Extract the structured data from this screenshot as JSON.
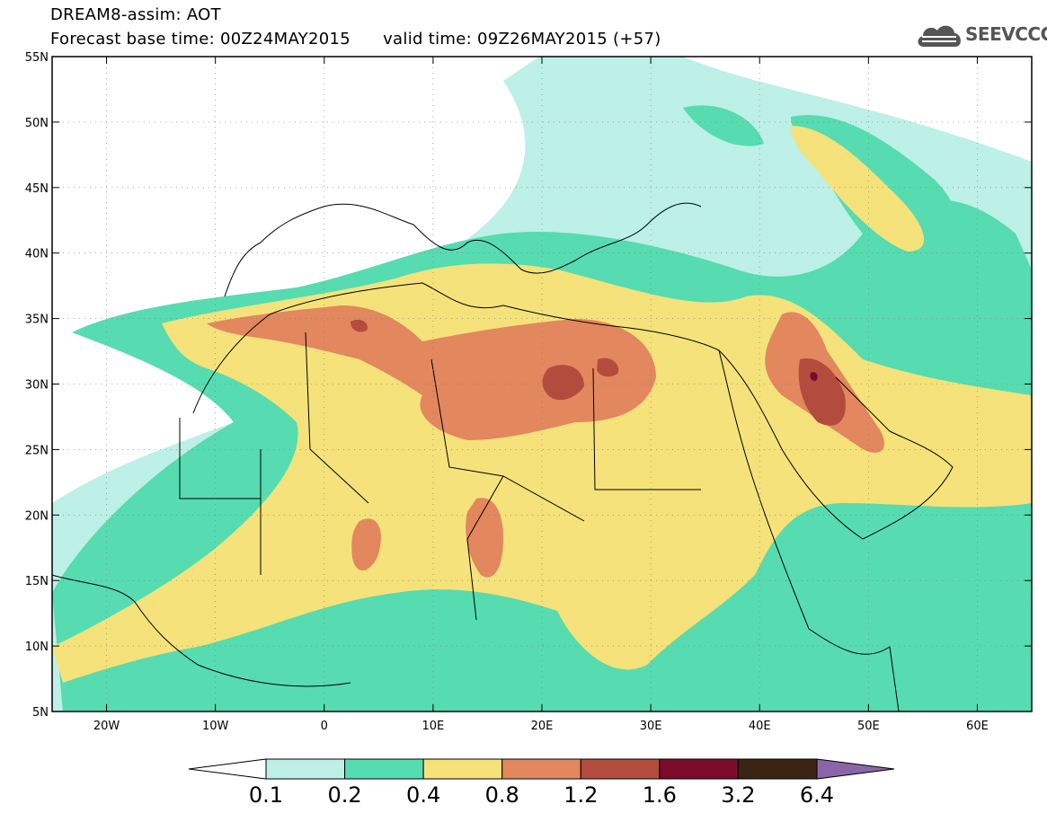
{
  "header": {
    "model_title": "DREAM8-assim: AOT",
    "base_time_label": "Forecast base time: 00Z24MAY2015",
    "valid_time_label": "valid time: 09Z26MAY2015 (+57)",
    "logo_text": "SEEVCCC",
    "logo_icon": "cloud-icon"
  },
  "map": {
    "lon_range": [
      -25,
      65
    ],
    "lat_range": [
      5,
      55
    ],
    "lon_ticks": [
      {
        "value": -20,
        "label": "20W"
      },
      {
        "value": -10,
        "label": "10W"
      },
      {
        "value": 0,
        "label": "0"
      },
      {
        "value": 10,
        "label": "10E"
      },
      {
        "value": 20,
        "label": "20E"
      },
      {
        "value": 30,
        "label": "30E"
      },
      {
        "value": 40,
        "label": "40E"
      },
      {
        "value": 50,
        "label": "50E"
      },
      {
        "value": 60,
        "label": "60E"
      }
    ],
    "lat_ticks": [
      {
        "value": 5,
        "label": "5N"
      },
      {
        "value": 10,
        "label": "10N"
      },
      {
        "value": 15,
        "label": "15N"
      },
      {
        "value": 20,
        "label": "20N"
      },
      {
        "value": 25,
        "label": "25N"
      },
      {
        "value": 30,
        "label": "30N"
      },
      {
        "value": 35,
        "label": "35N"
      },
      {
        "value": 40,
        "label": "40N"
      },
      {
        "value": 45,
        "label": "45N"
      },
      {
        "value": 50,
        "label": "50N"
      },
      {
        "value": 55,
        "label": "55N"
      }
    ],
    "grid": true
  },
  "colorbar": {
    "levels": [
      "0.1",
      "0.2",
      "0.4",
      "0.8",
      "1.2",
      "1.6",
      "3.2",
      "6.4"
    ],
    "colors": [
      "#ffffff",
      "#bdf0e6",
      "#56dcb0",
      "#f5e27a",
      "#e3875f",
      "#b44c3e",
      "#7b0b2c",
      "#3b2414",
      "#8a66a8"
    ]
  }
}
